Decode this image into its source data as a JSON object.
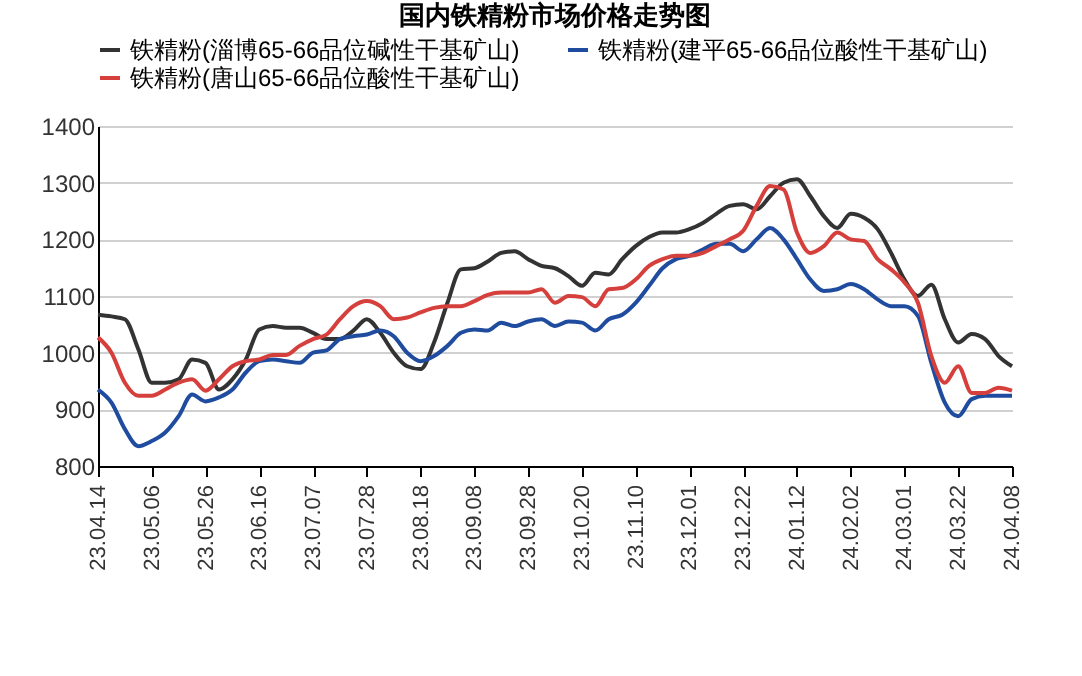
{
  "chart_data": {
    "type": "line",
    "title": "国内铁精粉市场价格走势图",
    "categories": [
      "23.04.14",
      null,
      null,
      null,
      "23.05.06",
      null,
      null,
      null,
      "23.05.26",
      null,
      null,
      null,
      "23.06.16",
      null,
      null,
      null,
      "23.07.07",
      null,
      null,
      null,
      "23.07.28",
      null,
      null,
      null,
      "23.08.18",
      null,
      null,
      null,
      "23.09.08",
      null,
      null,
      null,
      "23.09.28",
      null,
      null,
      null,
      "23.10.20",
      null,
      null,
      null,
      "23.11.10",
      null,
      null,
      null,
      "23.12.01",
      null,
      null,
      null,
      "23.12.22",
      null,
      null,
      null,
      "24.01.12",
      null,
      null,
      null,
      "24.02.02",
      null,
      null,
      null,
      "24.03.01",
      null,
      null,
      null,
      "24.03.22",
      null,
      null,
      null,
      "24.04.08"
    ],
    "series": [
      {
        "name": "铁精粉(淄博65-66品位碱性干基矿山)",
        "color": "#333333",
        "values": [
          1067,
          1064,
          1059,
          1006,
          947,
          947,
          953,
          988,
          982,
          935,
          953,
          988,
          1041,
          1047,
          1044,
          1044,
          1035,
          1024,
          1024,
          1039,
          1059,
          1035,
          1000,
          976,
          971,
          1018,
          1088,
          1147,
          1149,
          1161,
          1176,
          1179,
          1165,
          1153,
          1149,
          1135,
          1118,
          1141,
          1138,
          1165,
          1188,
          1204,
          1212,
          1212,
          1218,
          1229,
          1245,
          1259,
          1262,
          1253,
          1276,
          1300,
          1306,
          1276,
          1241,
          1220,
          1245,
          1238,
          1218,
          1176,
          1129,
          1100,
          1120,
          1059,
          1018,
          1033,
          1024,
          994,
          976
        ]
      },
      {
        "name": "铁精粉(建平65-66品位酸性干基矿山)",
        "color": "#1f4c9e",
        "values": [
          935,
          912,
          865,
          835,
          844,
          859,
          888,
          926,
          914,
          921,
          935,
          965,
          985,
          988,
          985,
          982,
          1000,
          1004,
          1024,
          1029,
          1032,
          1039,
          1029,
          1000,
          985,
          994,
          1012,
          1035,
          1041,
          1039,
          1053,
          1047,
          1055,
          1059,
          1047,
          1055,
          1053,
          1039,
          1059,
          1067,
          1088,
          1118,
          1149,
          1165,
          1171,
          1182,
          1192,
          1192,
          1179,
          1200,
          1220,
          1200,
          1165,
          1129,
          1109,
          1112,
          1121,
          1112,
          1094,
          1082,
          1082,
          1065,
          982,
          912,
          888,
          918,
          924,
          924,
          924
        ]
      },
      {
        "name": "铁精粉(唐山65-66品位酸性干基矿山)",
        "color": "#d6403c",
        "values": [
          1027,
          1000,
          947,
          924,
          924,
          935,
          947,
          953,
          933,
          953,
          976,
          985,
          988,
          996,
          996,
          1012,
          1024,
          1032,
          1059,
          1082,
          1091,
          1082,
          1059,
          1062,
          1071,
          1079,
          1082,
          1082,
          1091,
          1102,
          1106,
          1106,
          1106,
          1112,
          1088,
          1100,
          1098,
          1082,
          1112,
          1114,
          1129,
          1153,
          1165,
          1171,
          1171,
          1176,
          1188,
          1200,
          1215,
          1259,
          1294,
          1288,
          1212,
          1176,
          1188,
          1212,
          1200,
          1197,
          1165,
          1147,
          1124,
          1088,
          994,
          947,
          976,
          929,
          929,
          938,
          933
        ]
      }
    ],
    "ylim": [
      800,
      1400
    ],
    "yticks": [
      800,
      900,
      1000,
      1100,
      1200,
      1300,
      1400
    ],
    "grid": "y",
    "legend": "top"
  }
}
